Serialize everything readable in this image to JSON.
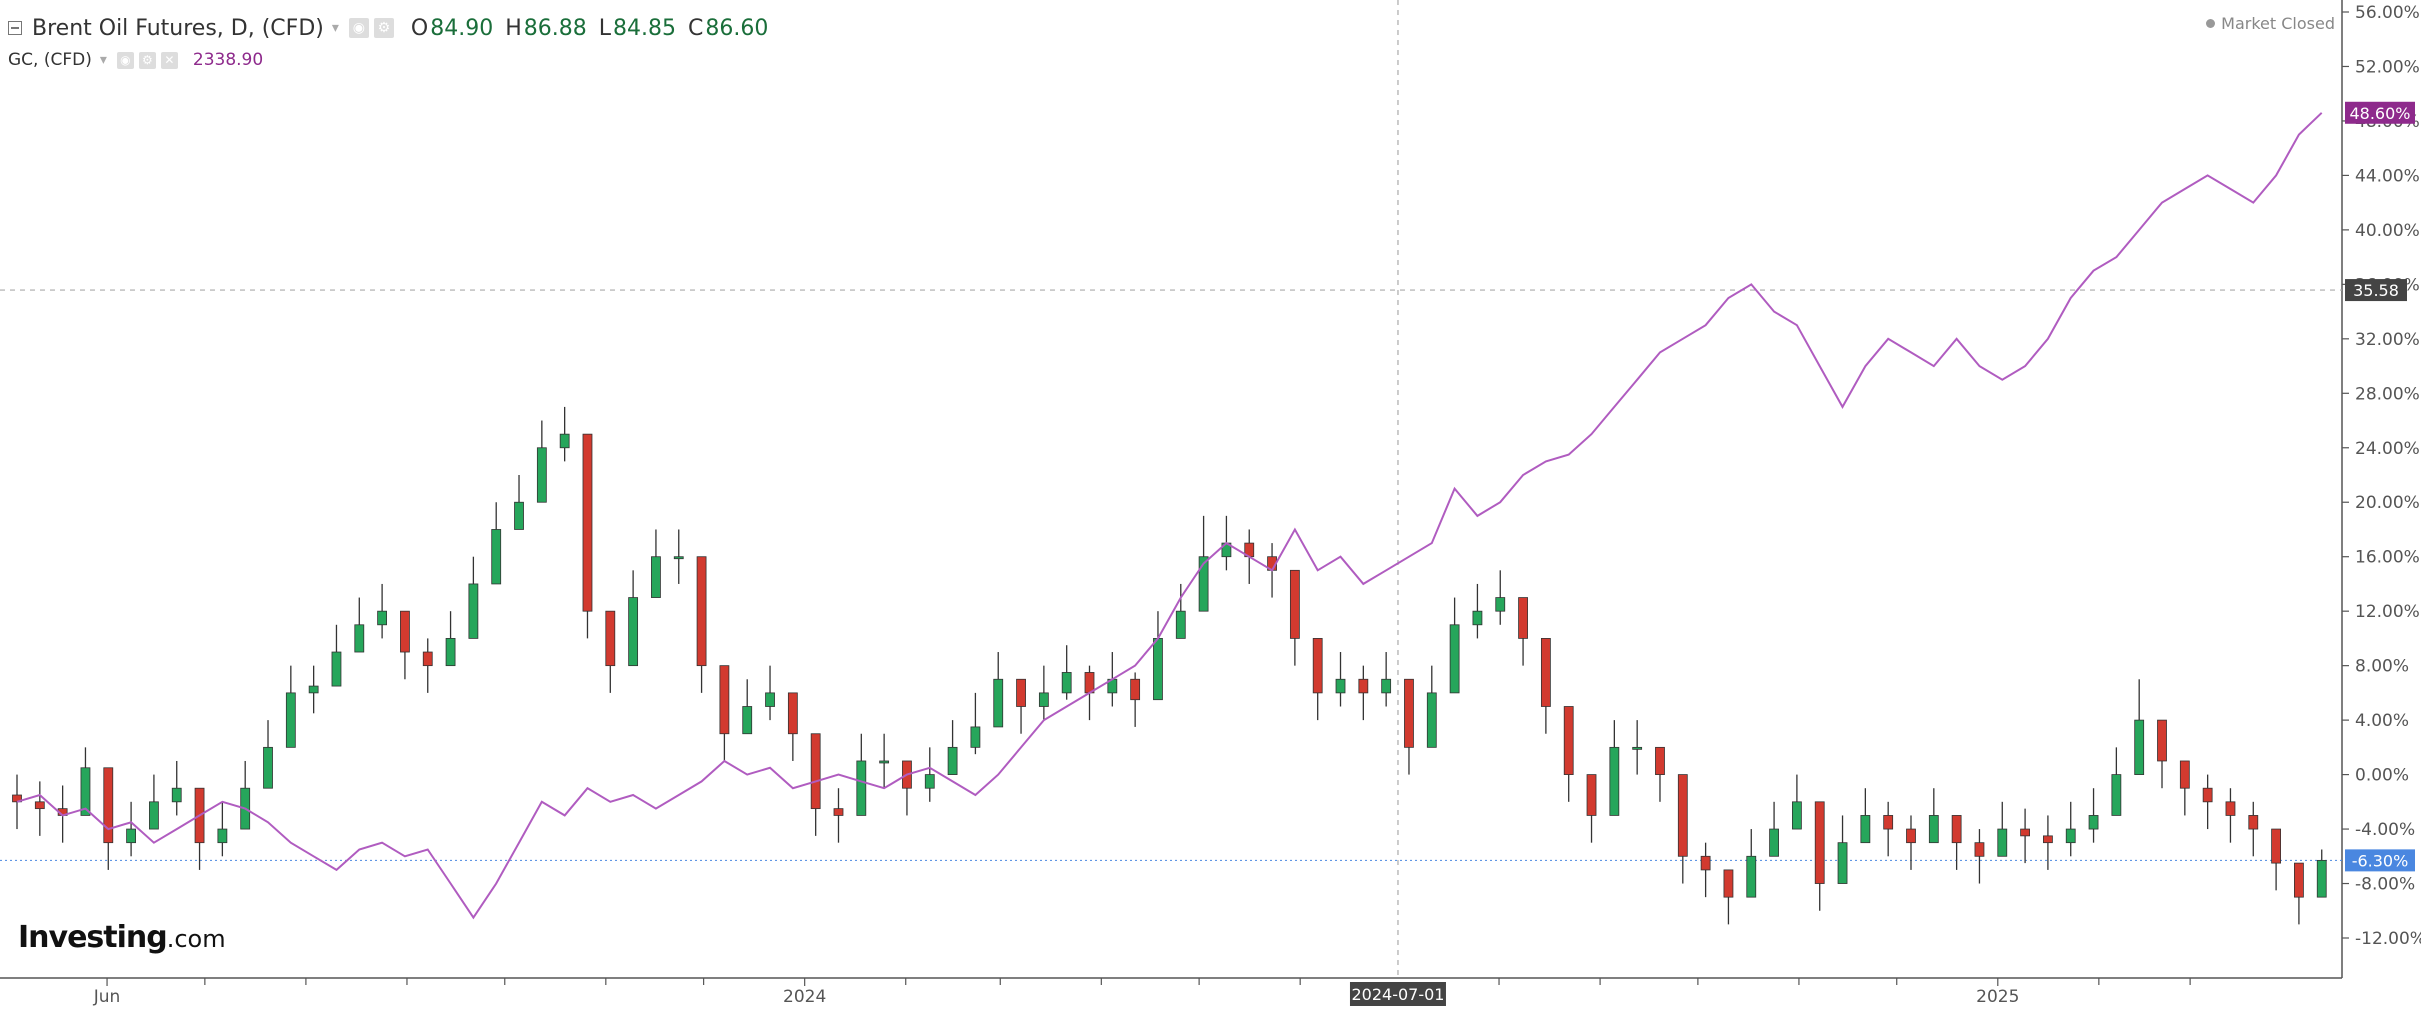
{
  "legend": {
    "main": {
      "title": "Brent Oil Futures, D, (CFD)",
      "o_key": "O",
      "o_val": "84.90",
      "h_key": "H",
      "h_val": "86.88",
      "l_key": "L",
      "l_val": "84.85",
      "c_key": "C",
      "c_val": "86.60"
    },
    "sub": {
      "title": "GC, (CFD)",
      "value": "2338.90"
    }
  },
  "market_status": "Market Closed",
  "logo": {
    "brand": "Investing",
    "suffix": ".com"
  },
  "colors": {
    "up": "#26a65b",
    "down": "#d23a2f",
    "compare_line": "#b05cc0",
    "gc_badge": "#8e2a8c",
    "brent_badge": "#4a87e0",
    "crosshair_badge": "#444444",
    "grid": "#e6e6e6"
  },
  "chart_data": {
    "type": "line",
    "yaxis_unit": "%",
    "ylim": [
      -12.0,
      56.0
    ],
    "y_ticks": [
      "56.00%",
      "52.00%",
      "48.00%",
      "44.00%",
      "40.00%",
      "36.00%",
      "32.00%",
      "28.00%",
      "24.00%",
      "20.00%",
      "16.00%",
      "12.00%",
      "8.00%",
      "4.00%",
      "0.00%",
      "-4.00%",
      "-8.00%",
      "-12.00%"
    ],
    "y_tick_values": [
      56,
      52,
      48,
      44,
      40,
      36,
      32,
      28,
      24,
      20,
      16,
      12,
      8,
      4,
      0,
      -4,
      -8,
      -12
    ],
    "x_tick_labels": [
      {
        "label": "Jun",
        "date": "2023-06-01"
      },
      {
        "label": "2024",
        "date": "2024-01-01"
      },
      {
        "label": "2025",
        "date": "2025-01-01"
      }
    ],
    "x_minor_tick_dates": [
      "2023-07-01",
      "2023-08-01",
      "2023-09-01",
      "2023-10-01",
      "2023-11-01",
      "2023-12-01",
      "2024-02-01",
      "2024-03-01",
      "2024-04-01",
      "2024-05-01",
      "2024-06-01",
      "2024-08-01",
      "2024-09-01",
      "2024-10-01",
      "2024-11-01",
      "2024-12-01",
      "2025-02-01",
      "2025-03-01"
    ],
    "xlim": [
      "2023-05-01",
      "2025-04-08"
    ],
    "crosshair": {
      "x_label": "2024-07-01",
      "y_label": "35.58"
    },
    "last_values": {
      "gc": "48.60%",
      "brent": "-6.30%",
      "gc_value": 48.6,
      "brent_value": -6.3
    },
    "series": [
      {
        "name": "Brent Oil Futures, D, (CFD)",
        "kind": "candlestick",
        "x": [
          "2023-05-01",
          "2023-05-08",
          "2023-05-15",
          "2023-05-22",
          "2023-05-29",
          "2023-06-05",
          "2023-06-12",
          "2023-06-19",
          "2023-06-26",
          "2023-07-03",
          "2023-07-10",
          "2023-07-17",
          "2023-07-24",
          "2023-07-31",
          "2023-08-07",
          "2023-08-14",
          "2023-08-21",
          "2023-08-28",
          "2023-09-04",
          "2023-09-11",
          "2023-09-18",
          "2023-09-25",
          "2023-10-02",
          "2023-10-09",
          "2023-10-16",
          "2023-10-23",
          "2023-10-30",
          "2023-11-06",
          "2023-11-13",
          "2023-11-20",
          "2023-11-27",
          "2023-12-04",
          "2023-12-11",
          "2023-12-18",
          "2023-12-25",
          "2024-01-01",
          "2024-01-08",
          "2024-01-15",
          "2024-01-22",
          "2024-01-29",
          "2024-02-05",
          "2024-02-12",
          "2024-02-19",
          "2024-02-26",
          "2024-03-04",
          "2024-03-11",
          "2024-03-18",
          "2024-03-25",
          "2024-04-01",
          "2024-04-08",
          "2024-04-15",
          "2024-04-22",
          "2024-04-29",
          "2024-05-06",
          "2024-05-13",
          "2024-05-20",
          "2024-05-27",
          "2024-06-03",
          "2024-06-10",
          "2024-06-17",
          "2024-06-24",
          "2024-07-01",
          "2024-07-08",
          "2024-07-15",
          "2024-07-22",
          "2024-07-29",
          "2024-08-05",
          "2024-08-12",
          "2024-08-19",
          "2024-08-26",
          "2024-09-02",
          "2024-09-09",
          "2024-09-16",
          "2024-09-23",
          "2024-09-30",
          "2024-10-07",
          "2024-10-14",
          "2024-10-21",
          "2024-10-28",
          "2024-11-04",
          "2024-11-11",
          "2024-11-18",
          "2024-11-25",
          "2024-12-02",
          "2024-12-09",
          "2024-12-16",
          "2024-12-23",
          "2024-12-30",
          "2025-01-06",
          "2025-01-13",
          "2025-01-20",
          "2025-01-27",
          "2025-02-03",
          "2025-02-10",
          "2025-02-17",
          "2025-02-24",
          "2025-03-03",
          "2025-03-10",
          "2025-03-17",
          "2025-03-24",
          "2025-03-31",
          "2025-04-07"
        ],
        "close": [
          -2.0,
          -2.5,
          -3.0,
          0.5,
          -5.0,
          -4.0,
          -2.0,
          -1.0,
          -5.0,
          -4.0,
          -1.0,
          2.0,
          6.0,
          6.5,
          9.0,
          11.0,
          12.0,
          9.0,
          8.0,
          10.0,
          14.0,
          18.0,
          20.0,
          24.0,
          25.0,
          12.0,
          8.0,
          13.0,
          16.0,
          16.0,
          8.0,
          3.0,
          5.0,
          6.0,
          3.0,
          -2.5,
          -3.0,
          1.0,
          1.0,
          -1.0,
          0.0,
          2.0,
          3.5,
          7.0,
          5.0,
          6.0,
          7.5,
          6.0,
          7.0,
          5.5,
          10.0,
          12.0,
          16.0,
          17.0,
          16.0,
          15.0,
          10.0,
          6.0,
          7.0,
          6.0,
          7.0,
          2.0,
          6.0,
          11.0,
          12.0,
          13.0,
          10.0,
          5.0,
          0.0,
          -3.0,
          2.0,
          2.0,
          0.0,
          -6.0,
          -7.0,
          -9.0,
          -6.0,
          -4.0,
          -2.0,
          -8.0,
          -5.0,
          -3.0,
          -4.0,
          -5.0,
          -3.0,
          -5.0,
          -6.0,
          -4.0,
          -4.5,
          -5.0,
          -4.0,
          -3.0,
          0.0,
          4.0,
          1.0,
          -1.0,
          -2.0,
          -3.0,
          -4.0,
          -6.5,
          -9.0,
          -6.3
        ],
        "high": [
          0.0,
          -0.5,
          -0.8,
          2.0,
          -2.0,
          -2.0,
          0.0,
          1.0,
          -2.0,
          -2.0,
          1.0,
          4.0,
          8.0,
          8.0,
          11.0,
          13.0,
          14.0,
          11.0,
          10.0,
          12.0,
          16.0,
          20.0,
          22.0,
          26.0,
          27.0,
          14.0,
          10.0,
          15.0,
          18.0,
          18.0,
          10.0,
          5.0,
          7.0,
          8.0,
          5.0,
          -0.5,
          -1.0,
          3.0,
          3.0,
          1.0,
          2.0,
          4.0,
          6.0,
          9.0,
          7.0,
          8.0,
          9.5,
          8.0,
          9.0,
          7.5,
          12.0,
          14.0,
          19.0,
          19.0,
          18.0,
          17.0,
          12.0,
          8.0,
          9.0,
          8.0,
          9.0,
          4.0,
          8.0,
          13.0,
          14.0,
          15.0,
          12.0,
          7.0,
          2.0,
          -1.0,
          4.0,
          4.0,
          2.0,
          -4.0,
          -5.0,
          -7.0,
          -4.0,
          -2.0,
          0.0,
          -6.0,
          -3.0,
          -1.0,
          -2.0,
          -3.0,
          -1.0,
          -3.0,
          -4.0,
          -2.0,
          -2.5,
          -3.0,
          -2.0,
          -1.0,
          2.0,
          7.0,
          3.0,
          1.0,
          0.0,
          -1.0,
          -2.0,
          -4.5,
          -7.0,
          -5.5
        ],
        "low": [
          -4.0,
          -4.5,
          -5.0,
          -3.0,
          -7.0,
          -6.0,
          -4.0,
          -3.0,
          -7.0,
          -6.0,
          -3.0,
          0.0,
          4.0,
          4.5,
          7.0,
          9.0,
          10.0,
          7.0,
          6.0,
          8.0,
          12.0,
          16.0,
          18.0,
          22.0,
          23.0,
          10.0,
          6.0,
          11.0,
          14.0,
          14.0,
          6.0,
          1.0,
          3.0,
          4.0,
          1.0,
          -4.5,
          -5.0,
          -1.0,
          -1.0,
          -3.0,
          -2.0,
          0.0,
          1.5,
          5.0,
          3.0,
          4.0,
          5.5,
          4.0,
          5.0,
          3.5,
          8.0,
          10.0,
          14.0,
          15.0,
          14.0,
          13.0,
          8.0,
          4.0,
          5.0,
          4.0,
          5.0,
          0.0,
          4.0,
          9.0,
          10.0,
          11.0,
          8.0,
          3.0,
          -2.0,
          -5.0,
          0.0,
          0.0,
          -2.0,
          -8.0,
          -9.0,
          -11.0,
          -8.0,
          -6.0,
          -4.0,
          -10.0,
          -7.0,
          -5.0,
          -6.0,
          -7.0,
          -5.0,
          -7.0,
          -8.0,
          -6.0,
          -6.5,
          -7.0,
          -6.0,
          -5.0,
          -2.0,
          2.0,
          -1.0,
          -3.0,
          -4.0,
          -5.0,
          -6.0,
          -8.5,
          -11.0,
          -9.0
        ]
      },
      {
        "name": "GC, (CFD)",
        "kind": "line",
        "x": [
          "2023-05-01",
          "2023-05-08",
          "2023-05-15",
          "2023-05-22",
          "2023-05-29",
          "2023-06-05",
          "2023-06-12",
          "2023-06-19",
          "2023-06-26",
          "2023-07-03",
          "2023-07-10",
          "2023-07-17",
          "2023-07-24",
          "2023-07-31",
          "2023-08-07",
          "2023-08-14",
          "2023-08-21",
          "2023-08-28",
          "2023-09-04",
          "2023-09-11",
          "2023-09-18",
          "2023-09-25",
          "2023-10-02",
          "2023-10-09",
          "2023-10-16",
          "2023-10-23",
          "2023-10-30",
          "2023-11-06",
          "2023-11-13",
          "2023-11-20",
          "2023-11-27",
          "2023-12-04",
          "2023-12-11",
          "2023-12-18",
          "2023-12-25",
          "2024-01-01",
          "2024-01-08",
          "2024-01-15",
          "2024-01-22",
          "2024-01-29",
          "2024-02-05",
          "2024-02-12",
          "2024-02-19",
          "2024-02-26",
          "2024-03-04",
          "2024-03-11",
          "2024-03-18",
          "2024-03-25",
          "2024-04-01",
          "2024-04-08",
          "2024-04-15",
          "2024-04-22",
          "2024-04-29",
          "2024-05-06",
          "2024-05-13",
          "2024-05-20",
          "2024-05-27",
          "2024-06-03",
          "2024-06-10",
          "2024-06-17",
          "2024-06-24",
          "2024-07-01",
          "2024-07-08",
          "2024-07-15",
          "2024-07-22",
          "2024-07-29",
          "2024-08-05",
          "2024-08-12",
          "2024-08-19",
          "2024-08-26",
          "2024-09-02",
          "2024-09-09",
          "2024-09-16",
          "2024-09-23",
          "2024-09-30",
          "2024-10-07",
          "2024-10-14",
          "2024-10-21",
          "2024-10-28",
          "2024-11-04",
          "2024-11-11",
          "2024-11-18",
          "2024-11-25",
          "2024-12-02",
          "2024-12-09",
          "2024-12-16",
          "2024-12-23",
          "2024-12-30",
          "2025-01-06",
          "2025-01-13",
          "2025-01-20",
          "2025-01-27",
          "2025-02-03",
          "2025-02-10",
          "2025-02-17",
          "2025-02-24",
          "2025-03-03",
          "2025-03-10",
          "2025-03-17",
          "2025-03-24",
          "2025-03-31",
          "2025-04-07"
        ],
        "y": [
          -2.0,
          -1.5,
          -3.0,
          -2.5,
          -4.0,
          -3.5,
          -5.0,
          -4.0,
          -3.0,
          -2.0,
          -2.5,
          -3.5,
          -5.0,
          -6.0,
          -7.0,
          -5.5,
          -5.0,
          -6.0,
          -5.5,
          -8.0,
          -10.5,
          -8.0,
          -5.0,
          -2.0,
          -3.0,
          -1.0,
          -2.0,
          -1.5,
          -2.5,
          -1.5,
          -0.5,
          1.0,
          0.0,
          0.5,
          -1.0,
          -0.5,
          0.0,
          -0.5,
          -1.0,
          0.0,
          0.5,
          -0.5,
          -1.5,
          0.0,
          2.0,
          4.0,
          5.0,
          6.0,
          7.0,
          8.0,
          10.0,
          13.0,
          15.5,
          17.0,
          16.0,
          15.0,
          18.0,
          15.0,
          16.0,
          14.0,
          15.0,
          16.0,
          17.0,
          21.0,
          19.0,
          20.0,
          22.0,
          23.0,
          23.5,
          25.0,
          27.0,
          29.0,
          31.0,
          32.0,
          33.0,
          35.0,
          36.0,
          34.0,
          33.0,
          30.0,
          27.0,
          30.0,
          32.0,
          31.0,
          30.0,
          32.0,
          30.0,
          29.0,
          30.0,
          32.0,
          35.0,
          37.0,
          38.0,
          40.0,
          42.0,
          43.0,
          44.0,
          43.0,
          42.0,
          44.0,
          47.0,
          48.6
        ]
      }
    ]
  }
}
